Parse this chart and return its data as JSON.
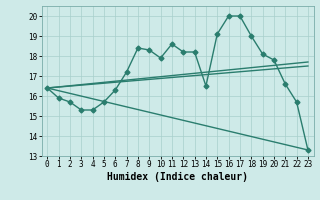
{
  "xlabel": "Humidex (Indice chaleur)",
  "ylabel": "",
  "xlim": [
    -0.5,
    23.5
  ],
  "ylim": [
    13,
    20.5
  ],
  "yticks": [
    13,
    14,
    15,
    16,
    17,
    18,
    19,
    20
  ],
  "xticks": [
    0,
    1,
    2,
    3,
    4,
    5,
    6,
    7,
    8,
    9,
    10,
    11,
    12,
    13,
    14,
    15,
    16,
    17,
    18,
    19,
    20,
    21,
    22,
    23
  ],
  "bg_color": "#ceeae8",
  "grid_color": "#a8cfcc",
  "line_color": "#2a7d6e",
  "line1_x": [
    0,
    1,
    2,
    3,
    4,
    5,
    6,
    7,
    8,
    9,
    10,
    11,
    12,
    13,
    14,
    15,
    16,
    17,
    18,
    19,
    20,
    21,
    22,
    23
  ],
  "line1_y": [
    16.4,
    15.9,
    15.7,
    15.3,
    15.3,
    15.7,
    16.3,
    17.2,
    18.4,
    18.3,
    17.9,
    18.6,
    18.2,
    18.2,
    16.5,
    19.1,
    20.0,
    20.0,
    19.0,
    18.1,
    17.8,
    16.6,
    15.7,
    13.3
  ],
  "line2_x": [
    0,
    23
  ],
  "line2_y": [
    16.4,
    17.5
  ],
  "line3_x": [
    0,
    23
  ],
  "line3_y": [
    16.4,
    17.7
  ],
  "line4_x": [
    0,
    23
  ],
  "line4_y": [
    16.4,
    13.3
  ],
  "marker": "D",
  "markersize": 2.5,
  "linewidth": 1.0,
  "tick_fontsize": 5.5,
  "xlabel_fontsize": 7.0
}
